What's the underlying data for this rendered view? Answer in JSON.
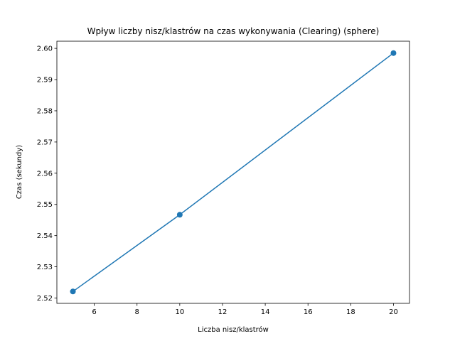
{
  "chart_data": {
    "type": "line",
    "title": "Wpływ liczby nisz/klastrów na czas wykonywania (Clearing) (sphere)",
    "xlabel": "Liczba nisz/klastrów",
    "ylabel": "Czas (sekundy)",
    "x": [
      5,
      10,
      20
    ],
    "series": [
      {
        "values": [
          2.5221,
          2.5467,
          2.5985
        ],
        "color": "#1f77b4",
        "marker": "circle"
      }
    ],
    "xlim": [
      4.25,
      20.75
    ],
    "ylim": [
      2.5183,
      2.6023
    ],
    "xticks": [
      6,
      8,
      10,
      12,
      14,
      16,
      18,
      20
    ],
    "xtick_labels": [
      "6",
      "8",
      "10",
      "12",
      "14",
      "16",
      "18",
      "20"
    ],
    "yticks": [
      2.52,
      2.53,
      2.54,
      2.55,
      2.56,
      2.57,
      2.58,
      2.59,
      2.6
    ],
    "ytick_labels": [
      "2.52",
      "2.53",
      "2.54",
      "2.55",
      "2.56",
      "2.57",
      "2.58",
      "2.59",
      "2.60"
    ],
    "grid": false,
    "legend": "none"
  }
}
